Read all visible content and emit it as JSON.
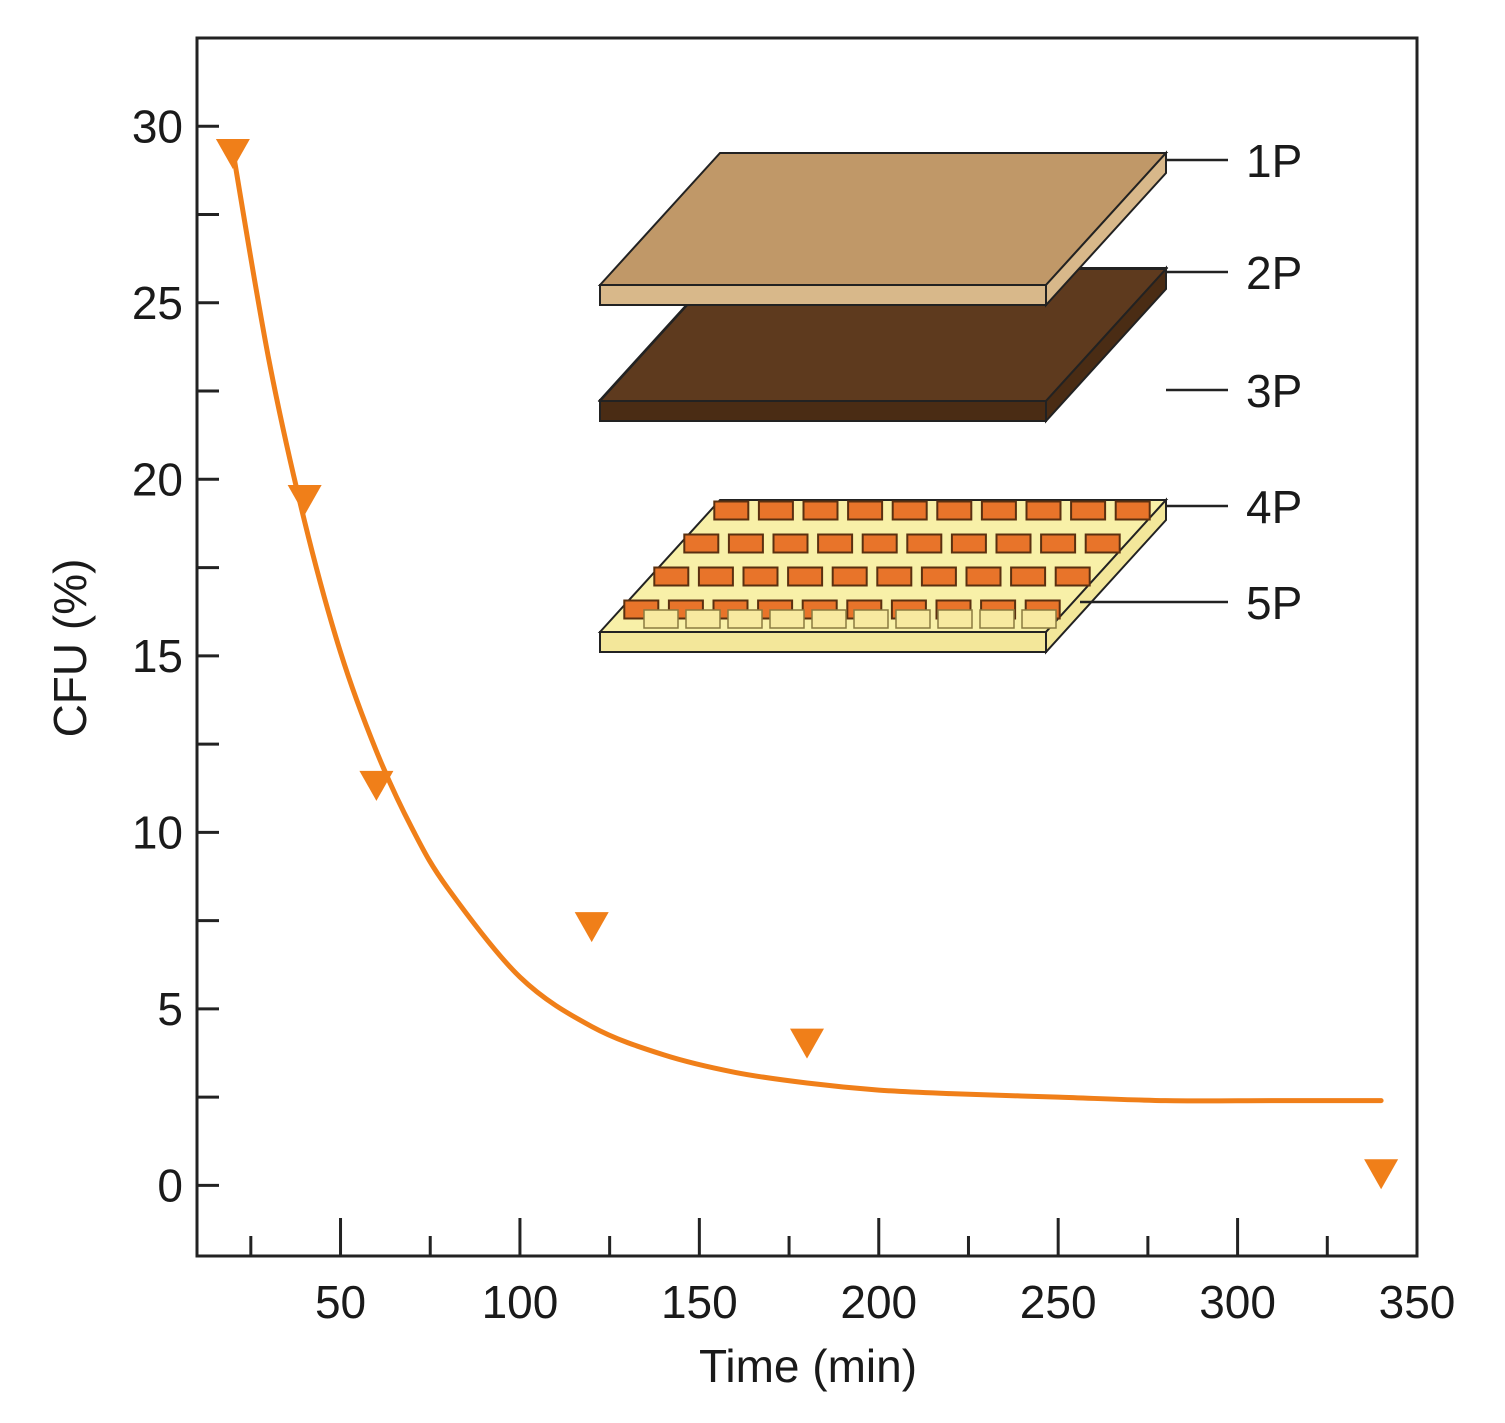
{
  "chart_data": {
    "type": "scatter",
    "xlabel": "Time (min)",
    "ylabel": "CFU (%)",
    "xlim": [
      10,
      350
    ],
    "ylim": [
      -2,
      32.5
    ],
    "x_ticks": [
      "50",
      "100",
      "150",
      "200",
      "250",
      "300",
      "350"
    ],
    "y_ticks": [
      "0",
      "5",
      "10",
      "15",
      "20",
      "25",
      "30"
    ],
    "grid": false,
    "series": [
      {
        "marker": "triangle-down",
        "color": "#f07f19",
        "x": [
          20,
          40,
          60,
          120,
          180,
          340
        ],
        "y": [
          29.3,
          19.5,
          11.4,
          7.4,
          4.1,
          0.4
        ]
      }
    ],
    "fit_curve": {
      "color": "#f07f19",
      "model": "exponential-decay",
      "x": [
        20,
        30,
        40,
        50,
        60,
        70,
        80,
        100,
        120,
        140,
        160,
        180,
        200,
        220,
        250,
        280,
        310,
        340
      ],
      "y": [
        29.3,
        23.4,
        18.8,
        15.1,
        12.3,
        10.1,
        8.4,
        5.9,
        4.5,
        3.7,
        3.2,
        2.9,
        2.7,
        2.6,
        2.5,
        2.4,
        2.4,
        2.4
      ]
    },
    "inset": {
      "layers": [
        "1P",
        "2P",
        "3P",
        "4P",
        "5P"
      ],
      "colors": [
        "#c09868",
        "#5e3a1e",
        "#ffffff",
        "#ffffff",
        "#f8f0a8"
      ],
      "cell_color": "#e8742a"
    }
  }
}
